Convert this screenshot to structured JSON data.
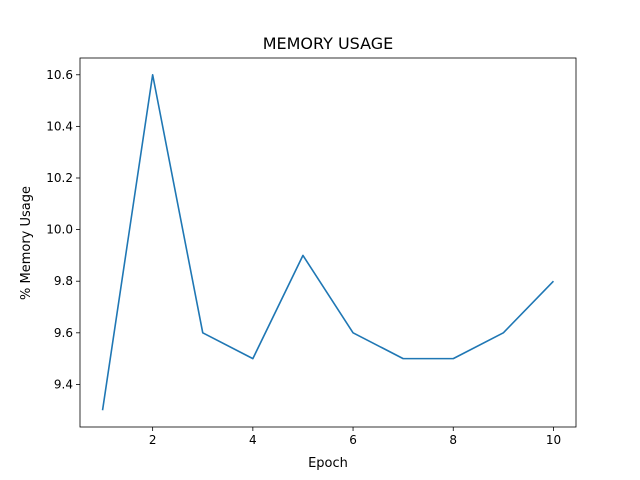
{
  "chart_data": {
    "type": "line",
    "title": "MEMORY USAGE",
    "xlabel": "Epoch",
    "ylabel": "% Memory Usage",
    "x": [
      1,
      2,
      3,
      4,
      5,
      6,
      7,
      8,
      9,
      10
    ],
    "series": [
      {
        "values": [
          9.3,
          10.6,
          9.6,
          9.5,
          9.9,
          9.6,
          9.5,
          9.5,
          9.6,
          9.8
        ],
        "color": "#1f77b4"
      }
    ],
    "xlim": [
      0.55,
      10.45
    ],
    "ylim": [
      9.235,
      10.665
    ],
    "xticks": [
      2,
      4,
      6,
      8,
      10
    ],
    "xtick_labels": [
      "2",
      "4",
      "6",
      "8",
      "10"
    ],
    "yticks": [
      9.4,
      9.6,
      9.8,
      10.0,
      10.2,
      10.4,
      10.6
    ],
    "ytick_labels": [
      "9.4",
      "9.6",
      "9.8",
      "10.0",
      "10.2",
      "10.4",
      "10.6"
    ],
    "grid": false,
    "legend": "none"
  }
}
